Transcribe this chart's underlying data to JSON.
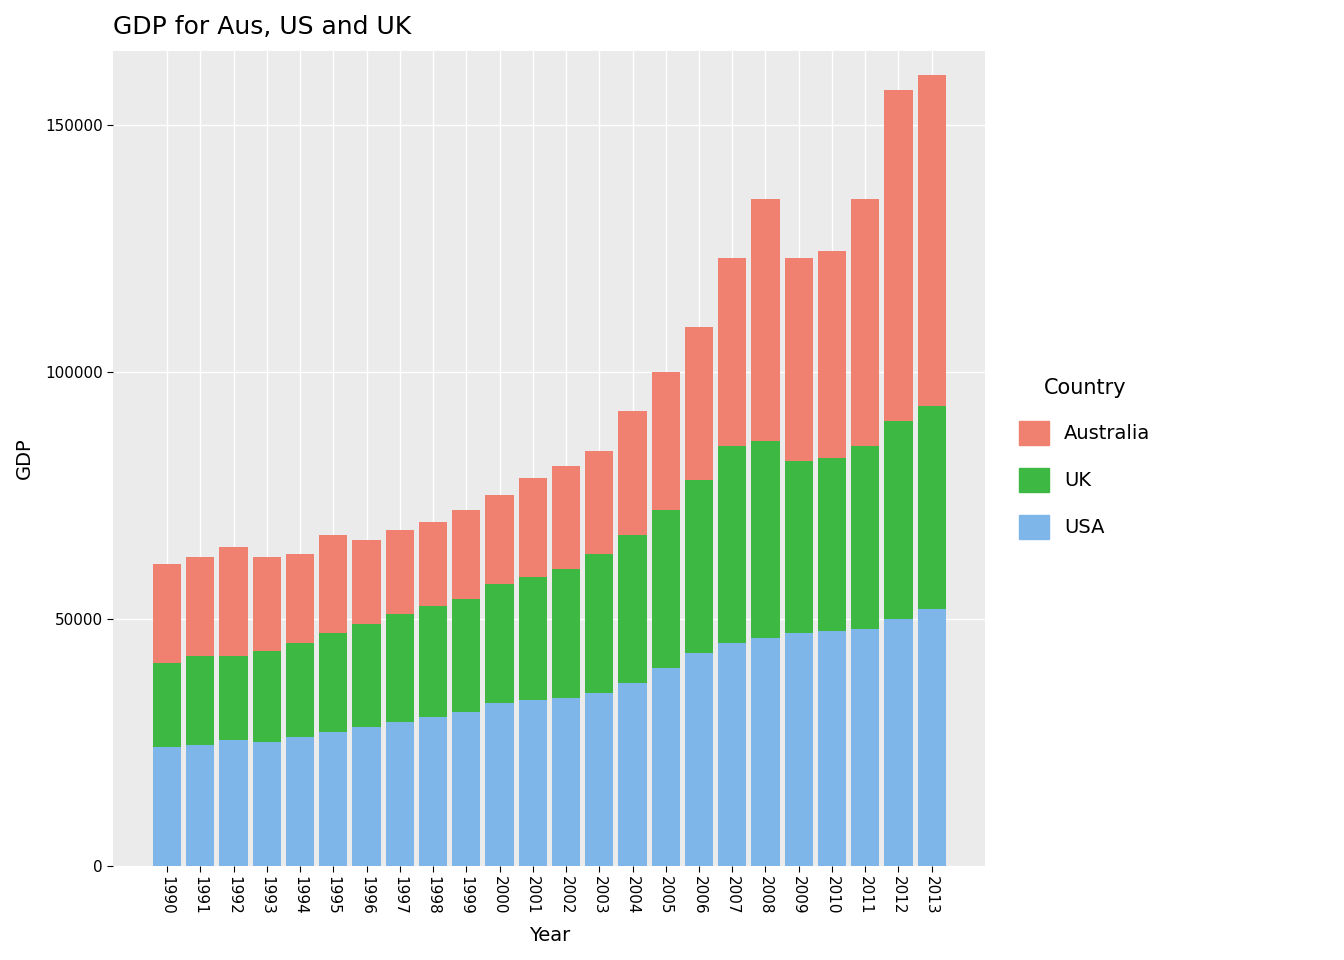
{
  "title": "GDP for Aus, US and UK",
  "xlabel": "Year",
  "ylabel": "GDP",
  "years": [
    1990,
    1991,
    1992,
    1993,
    1994,
    1995,
    1996,
    1997,
    1998,
    1999,
    2000,
    2001,
    2002,
    2003,
    2004,
    2005,
    2006,
    2007,
    2008,
    2009,
    2010,
    2011,
    2012,
    2013
  ],
  "usa": [
    24000,
    24500,
    25500,
    25000,
    26000,
    27000,
    28000,
    29000,
    30000,
    31000,
    33000,
    33500,
    34000,
    35000,
    37000,
    40000,
    43000,
    45000,
    46000,
    47000,
    47500,
    48000,
    50000,
    52000
  ],
  "uk": [
    17000,
    18000,
    17000,
    18500,
    19000,
    20000,
    21000,
    22000,
    22500,
    23000,
    24000,
    25000,
    26000,
    28000,
    30000,
    32000,
    35000,
    40000,
    40000,
    35000,
    35000,
    37000,
    40000,
    41000
  ],
  "australia": [
    20000,
    20000,
    22000,
    19000,
    18000,
    20000,
    17000,
    17000,
    17000,
    18000,
    18000,
    20000,
    21000,
    21000,
    25000,
    28000,
    31000,
    38000,
    49000,
    41000,
    42000,
    50000,
    67000,
    67000
  ],
  "usa_color": "#7eb6ea",
  "uk_color": "#3cb843",
  "australia_color": "#f08070",
  "background_color": "#ebebeb",
  "ylim": [
    0,
    165000
  ],
  "yticks": [
    0,
    50000,
    100000,
    150000
  ],
  "legend_title": "Country",
  "legend_labels": [
    "Australia",
    "UK",
    "USA"
  ],
  "title_fontsize": 18,
  "axis_fontsize": 14,
  "tick_fontsize": 11
}
